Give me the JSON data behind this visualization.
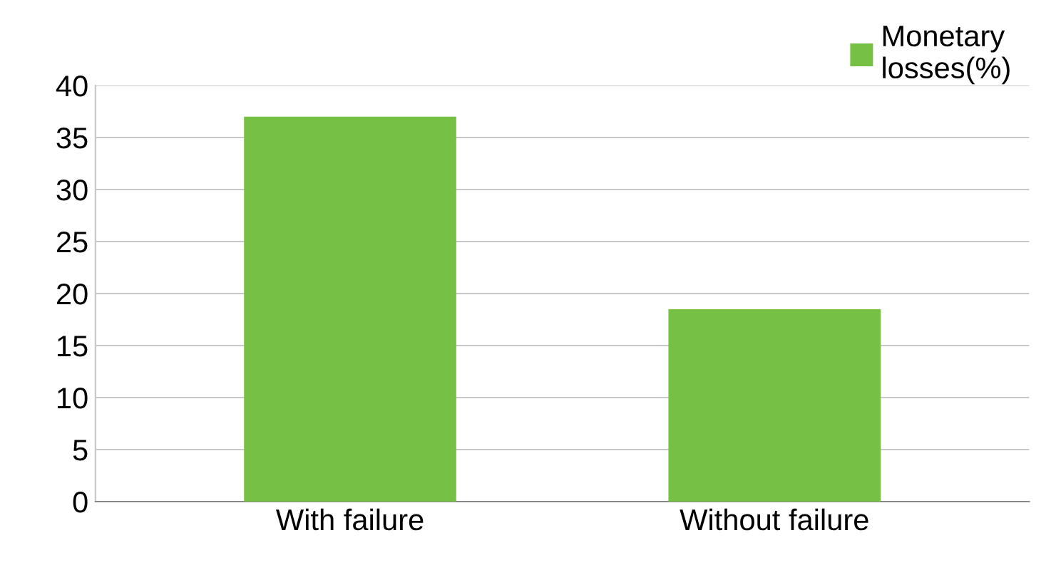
{
  "chart_data": {
    "type": "bar",
    "categories": [
      "With failure",
      "Without failure"
    ],
    "series": [
      {
        "name": "Monetary\nlosses(%)",
        "color": "#76c043",
        "values": [
          37,
          18.5
        ]
      }
    ],
    "ylim": [
      0,
      40
    ],
    "yticks": [
      0,
      5,
      10,
      15,
      20,
      25,
      30,
      35,
      40
    ],
    "grid": "y",
    "legend": "top right"
  }
}
